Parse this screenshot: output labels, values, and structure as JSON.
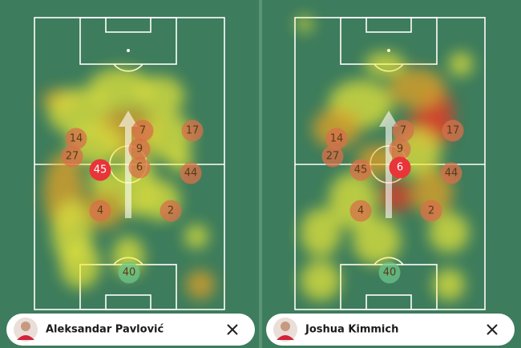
{
  "panels": [
    {
      "player": "Aleksandar Pavlović",
      "markers": [
        {
          "number": 14,
          "color": "#d9704a"
        },
        {
          "number": 27,
          "color": "#d9704a"
        },
        {
          "number": 45,
          "color": "#e8353a"
        },
        {
          "number": 7,
          "color": "#d9704a"
        },
        {
          "number": 9,
          "color": "#d9704a"
        },
        {
          "number": 6,
          "color": "#d9704a"
        },
        {
          "number": 17,
          "color": "#d9704a"
        },
        {
          "number": 44,
          "color": "#d9704a"
        },
        {
          "number": 4,
          "color": "#d9704a"
        },
        {
          "number": 2,
          "color": "#d9704a"
        },
        {
          "number": 40,
          "color": "#6cc58a"
        }
      ]
    },
    {
      "player": "Joshua Kimmich",
      "markers": [
        {
          "number": 14,
          "color": "#d9704a"
        },
        {
          "number": 27,
          "color": "#d9704a"
        },
        {
          "number": 45,
          "color": "#d9704a"
        },
        {
          "number": 7,
          "color": "#d9704a"
        },
        {
          "number": 9,
          "color": "#d9704a"
        },
        {
          "number": 6,
          "color": "#e8353a"
        },
        {
          "number": 17,
          "color": "#d9704a"
        },
        {
          "number": 44,
          "color": "#d9704a"
        },
        {
          "number": 4,
          "color": "#d9704a"
        },
        {
          "number": 2,
          "color": "#d9704a"
        },
        {
          "number": 40,
          "color": "#6cc58a"
        }
      ]
    }
  ]
}
